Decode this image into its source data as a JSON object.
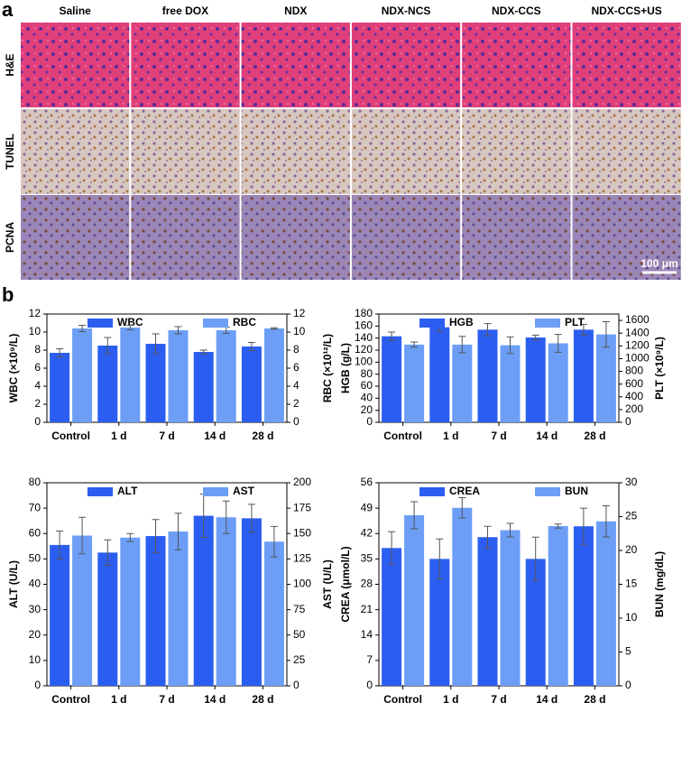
{
  "panel_a": {
    "label": "a",
    "columns": [
      "Saline",
      "free DOX",
      "NDX",
      "NDX-NCS",
      "NDX-CCS",
      "NDX-CCS+US"
    ],
    "rows": [
      "H&E",
      "TUNEL",
      "PCNA"
    ],
    "scale_bar": "100 μm"
  },
  "panel_b": {
    "label": "b"
  },
  "chart_data": [
    {
      "type": "bar",
      "categories": [
        "Control",
        "1 d",
        "7 d",
        "14 d",
        "28 d"
      ],
      "ylabel": "WBC (×10⁹/L)",
      "y2label": "RBC (×10¹²/L)",
      "ylim": [
        0,
        12
      ],
      "yticks": [
        0,
        2,
        4,
        6,
        8,
        10,
        12
      ],
      "y2lim": [
        0,
        12
      ],
      "y2ticks": [
        0,
        2,
        4,
        6,
        8,
        10,
        12
      ],
      "series": [
        {
          "name": "WBC",
          "color": "#2b5ef0",
          "values": [
            7.7,
            8.5,
            8.7,
            7.8,
            8.4
          ],
          "errors": [
            0.45,
            0.9,
            1.1,
            0.2,
            0.45
          ]
        },
        {
          "name": "RBC",
          "color": "#6c9ef6",
          "axis": "y2",
          "values": [
            10.4,
            10.5,
            10.2,
            10.2,
            10.4
          ],
          "errors": [
            0.35,
            0.25,
            0.4,
            0.35,
            0.07
          ]
        }
      ]
    },
    {
      "type": "bar",
      "categories": [
        "Control",
        "1 d",
        "7 d",
        "14 d",
        "28 d"
      ],
      "ylabel": "HGB (g/L)",
      "y2label": "PLT (×10⁹/L)",
      "ylim": [
        0,
        180
      ],
      "yticks": [
        0,
        20,
        40,
        60,
        80,
        100,
        120,
        140,
        160,
        180
      ],
      "y2lim": [
        0,
        1700
      ],
      "y2ticks": [
        0,
        200,
        400,
        600,
        800,
        1000,
        1200,
        1400,
        1600
      ],
      "series": [
        {
          "name": "HGB",
          "color": "#2b5ef0",
          "values": [
            143,
            158,
            154,
            141,
            154
          ],
          "errors": [
            7,
            7,
            10,
            4,
            9
          ]
        },
        {
          "name": "PLT",
          "color": "#6c9ef6",
          "axis": "y2",
          "values": [
            1220,
            1220,
            1210,
            1240,
            1380
          ],
          "errors": [
            40,
            130,
            130,
            140,
            200
          ]
        }
      ]
    },
    {
      "type": "bar",
      "categories": [
        "Control",
        "1 d",
        "7 d",
        "14 d",
        "28 d"
      ],
      "ylabel": "ALT (U/L)",
      "y2label": "AST (U/L)",
      "ylim": [
        0,
        80
      ],
      "yticks": [
        0,
        10,
        20,
        30,
        40,
        50,
        60,
        70,
        80
      ],
      "y2lim": [
        0,
        200
      ],
      "y2ticks": [
        0,
        25,
        50,
        75,
        100,
        125,
        150,
        175,
        200
      ],
      "series": [
        {
          "name": "ALT",
          "color": "#2b5ef0",
          "values": [
            55.5,
            52.5,
            59,
            67,
            66
          ],
          "errors": [
            5.5,
            5,
            6.5,
            8.5,
            5.5
          ]
        },
        {
          "name": "AST",
          "color": "#6c9ef6",
          "axis": "y2",
          "values": [
            148,
            146,
            152,
            166,
            142
          ],
          "errors": [
            18,
            4,
            18,
            16,
            15
          ]
        }
      ]
    },
    {
      "type": "bar",
      "categories": [
        "Control",
        "1 d",
        "7 d",
        "14 d",
        "28 d"
      ],
      "ylabel": "CREA (μmol/L)",
      "y2label": "BUN (mg/dL)",
      "ylim": [
        0,
        56
      ],
      "yticks": [
        0,
        7,
        14,
        21,
        28,
        35,
        42,
        49,
        56
      ],
      "y2lim": [
        0,
        30
      ],
      "y2ticks": [
        0,
        5,
        10,
        15,
        20,
        25,
        30
      ],
      "series": [
        {
          "name": "CREA",
          "color": "#2b5ef0",
          "values": [
            38,
            35,
            41,
            35,
            44
          ],
          "errors": [
            4.5,
            5.5,
            3,
            6,
            5
          ]
        },
        {
          "name": "BUN",
          "color": "#6c9ef6",
          "axis": "y2",
          "values": [
            25.2,
            26.3,
            23,
            23.6,
            24.3
          ],
          "errors": [
            2,
            1.5,
            1,
            0.3,
            2.3
          ]
        }
      ]
    }
  ]
}
